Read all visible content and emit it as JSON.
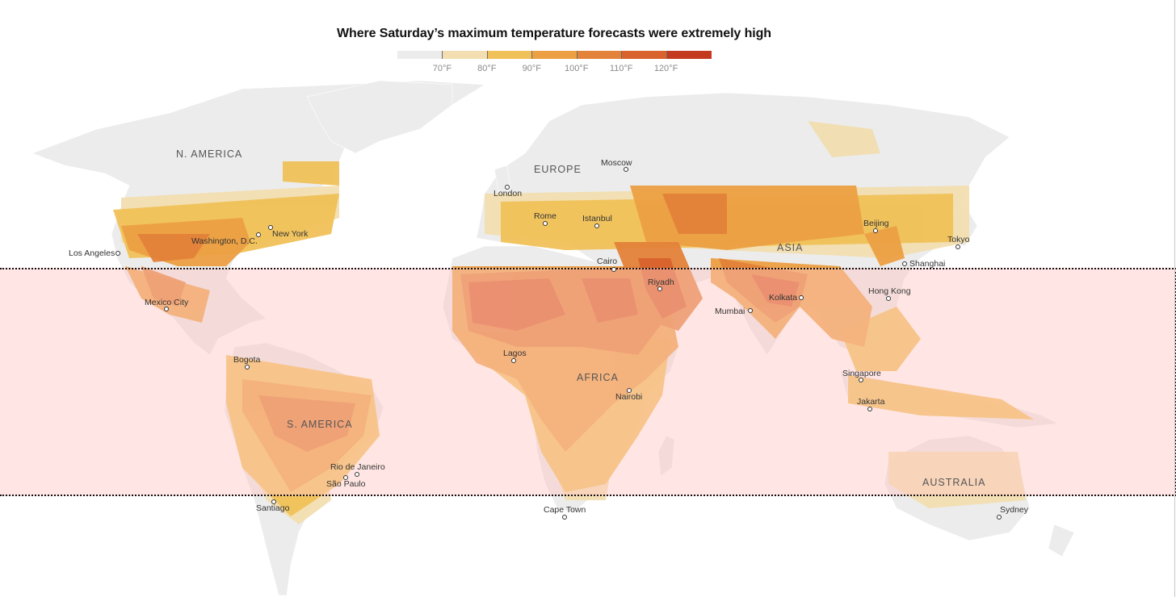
{
  "title": "Where Saturday’s maximum temperature forecasts were extremely high",
  "legend": {
    "ticks": [
      "70°F",
      "80°F",
      "90°F",
      "100°F",
      "110°F",
      "120°F"
    ],
    "bins": [
      {
        "color": "#ececec"
      },
      {
        "color": "#f2deb0"
      },
      {
        "color": "#f0c158"
      },
      {
        "color": "#eca043"
      },
      {
        "color": "#e3823a"
      },
      {
        "color": "#d9632d"
      },
      {
        "color": "#c43a1f"
      }
    ]
  },
  "colors": {
    "land_base": "#efefef",
    "band_fill": "#ffd9d4",
    "band_border": "#111111"
  },
  "regions": {
    "north_america": "N. AMERICA",
    "europe": "EUROPE",
    "asia": "ASIA",
    "africa": "AFRICA",
    "south_america": "S. AMERICA",
    "australia": "AUSTRALIA"
  },
  "cities": {
    "moscow": "Moscow",
    "london": "London",
    "rome": "Rome",
    "istanbul": "Istanbul",
    "beijing": "Beijing",
    "tokyo": "Tokyo",
    "shanghai": "Shanghai",
    "new_york": "New York",
    "washington": "Washington, D.C.",
    "los_angeles": "Los Angeles",
    "cairo": "Cairo",
    "riyadh": "Riyadh",
    "mumbai": "Mumbai",
    "kolkata": "Kolkata",
    "hong_kong": "Hong Kong",
    "mexico_city": "Mexico City",
    "bogota": "Bogota",
    "lagos": "Lagos",
    "nairobi": "Nairobi",
    "singapore": "Singapore",
    "jakarta": "Jakarta",
    "rio": "Rio de Janeiro",
    "sao_paulo": "São Paulo",
    "santiago": "Santiago",
    "cape_town": "Cape Town",
    "sydney": "Sydney"
  }
}
